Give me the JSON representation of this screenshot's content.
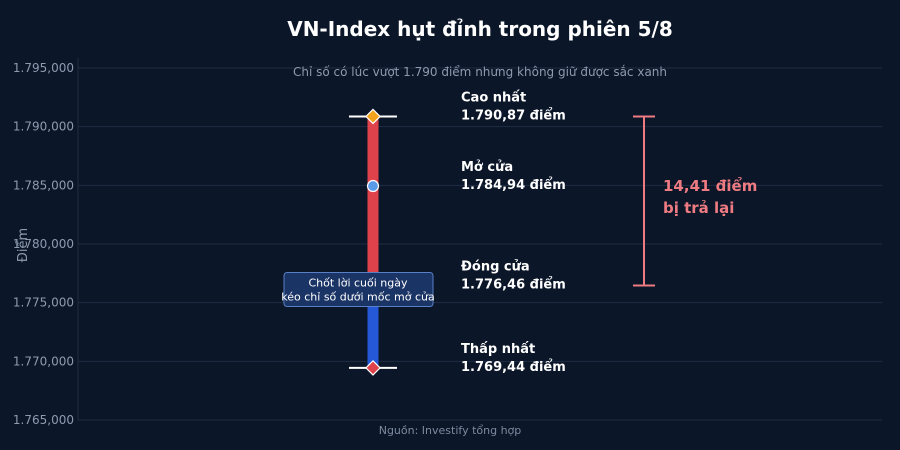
{
  "chart_data": {
    "type": "candlestick-annotation",
    "title": "VN-Index hụt đỉnh trong phiên 5/8",
    "subtitle": "Chỉ số có lúc vượt 1.790 điểm nhưng không giữ được sắc xanh",
    "ylabel": "Điểm",
    "source": "Nguồn: Investify tổng hợp",
    "ylim": [
      1765,
      1795
    ],
    "yticks": [
      1765,
      1770,
      1775,
      1780,
      1785,
      1790,
      1795
    ],
    "grid": true,
    "values": {
      "high": 1790.87,
      "open": 1784.94,
      "close": 1776.46,
      "low": 1769.44
    },
    "labels": {
      "high": {
        "name": "Cao nhất",
        "value": "1.790,87 điểm"
      },
      "open": {
        "name": "Mở cửa",
        "value": "1.784,94 điểm"
      },
      "close": {
        "name": "Đóng cửa",
        "value": "1.776,46 điểm"
      },
      "low": {
        "name": "Thấp nhất",
        "value": "1.769,44 điểm"
      }
    },
    "annotation": {
      "lines": [
        "Chốt lời cuối ngày",
        "kéo chỉ số dưới mốc mở cửa"
      ]
    },
    "giveback": {
      "range": [
        1776.46,
        1790.87
      ],
      "lines": [
        "14,41 điểm",
        "bị trả lại"
      ]
    },
    "colors": {
      "background": "#0b1628",
      "down_segment": "#e0424b",
      "lower_segment": "#2458d6",
      "high_marker": "#f4a31c",
      "open_marker": "#5b9ae8",
      "low_marker": "#e0424b",
      "giveback": "#ee7b82",
      "grid": "#1f2d44",
      "text": "#ffffff",
      "muted": "#8d9bb0",
      "annotation_fill": "#1b3466",
      "annotation_border": "#5a7fc6"
    }
  }
}
